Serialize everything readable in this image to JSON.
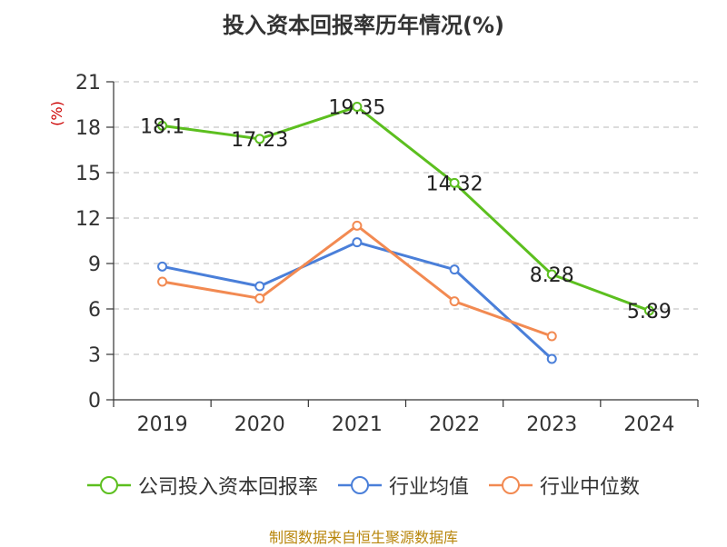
{
  "title": "投入资本回报率历年情况(%)",
  "footer": "制图数据来自恒生聚源数据库",
  "chart_data": {
    "type": "line",
    "title": "投入资本回报率历年情况(%)",
    "unit_label": "(%)",
    "categories": [
      "2019",
      "2020",
      "2021",
      "2022",
      "2023",
      "2024"
    ],
    "ylim": [
      0,
      21
    ],
    "yticks": [
      0,
      3,
      6,
      9,
      12,
      15,
      18,
      21
    ],
    "grid": true,
    "legend_position": "bottom",
    "series": [
      {
        "name": "公司投入资本回报率",
        "color": "#5cbf1f",
        "values": [
          18.1,
          17.23,
          19.35,
          14.32,
          8.28,
          5.89
        ],
        "labels": [
          "18.1",
          "17.23",
          "19.35",
          "14.32",
          "8.28",
          "5.89"
        ]
      },
      {
        "name": "行业均值",
        "color": "#4a7fd9",
        "values": [
          8.8,
          7.5,
          10.4,
          8.6,
          2.7,
          null
        ]
      },
      {
        "name": "行业中位数",
        "color": "#f28a52",
        "values": [
          7.8,
          6.7,
          11.5,
          6.5,
          4.2,
          null
        ]
      }
    ]
  }
}
